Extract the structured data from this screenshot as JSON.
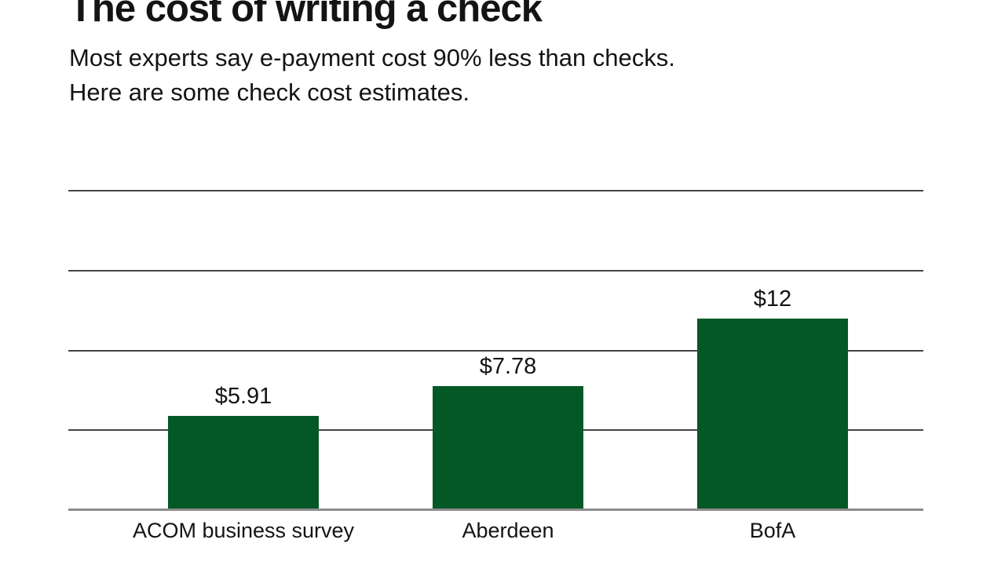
{
  "header": {
    "title": "The cost of writing a check",
    "subtitle_line1": "Most experts say e-payment cost 90% less than checks.",
    "subtitle_line2": "Here are some check cost estimates."
  },
  "chart_data": {
    "type": "bar",
    "title": "The cost of writing a check",
    "subtitle": "Most experts say e-payment cost 90% less than checks. Here are some check cost estimates.",
    "categories": [
      "ACOM business survey",
      "Aberdeen",
      "BofA"
    ],
    "values": [
      5.91,
      7.78,
      12
    ],
    "value_labels": [
      "$5.91",
      "$7.78",
      "$12"
    ],
    "xlabel": "",
    "ylabel": "",
    "ylim": [
      0,
      20
    ],
    "gridline_step": 5,
    "grid": true,
    "y_tick_labels_visible": false,
    "legend": "none",
    "colors": {
      "bar": "#045825",
      "gridline": "#454545",
      "baseline": "#8c8c8c",
      "text": "#141414",
      "background": "#ffffff"
    }
  }
}
